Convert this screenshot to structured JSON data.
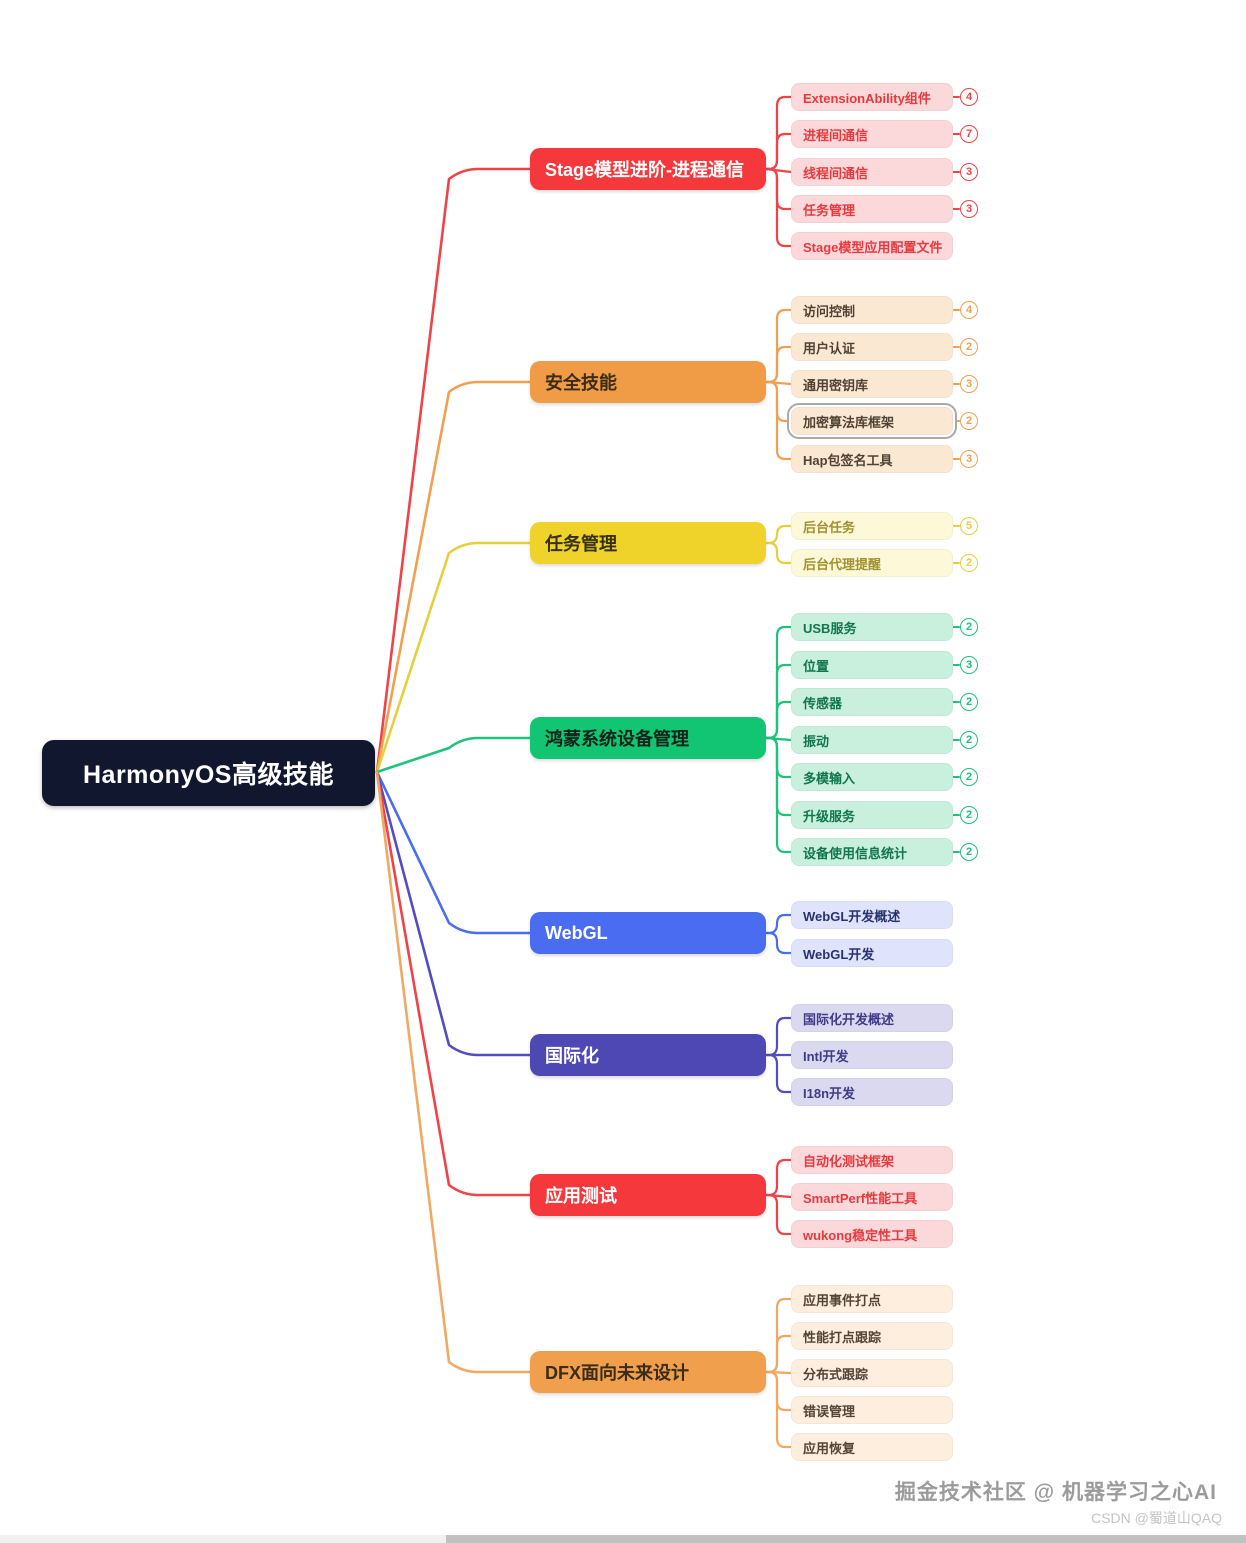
{
  "root": {
    "label": "HarmonyOS高级技能"
  },
  "branches": [
    {
      "label": "Stage模型进阶-进程通信",
      "fill": "#f4383c",
      "label_color": "#ffffff",
      "child_bg": "#fbd8da",
      "child_text": "#e63a3f",
      "line": "#ef4347",
      "children": [
        {
          "label": "ExtensionAbility组件",
          "badge": "4"
        },
        {
          "label": "进程间通信",
          "badge": "7"
        },
        {
          "label": "线程间通信",
          "badge": "3"
        },
        {
          "label": "任务管理",
          "badge": "3"
        },
        {
          "label": "Stage模型应用配置文件"
        }
      ]
    },
    {
      "label": "安全技能",
      "fill": "#f09b45",
      "label_color": "#3a2c18",
      "child_bg": "#fbe8d3",
      "child_text": "#4f4232",
      "line": "#f0a050",
      "children": [
        {
          "label": "访问控制",
          "badge": "4"
        },
        {
          "label": "用户认证",
          "badge": "2"
        },
        {
          "label": "通用密钥库",
          "badge": "3"
        },
        {
          "label": "加密算法库框架",
          "badge": "2",
          "selected": true
        },
        {
          "label": "Hap包签名工具",
          "badge": "3"
        }
      ]
    },
    {
      "label": "任务管理",
      "fill": "#efd32a",
      "label_color": "#373112",
      "child_bg": "#fdf8d8",
      "child_text": "#a0922e",
      "line": "#e6cf3c",
      "children": [
        {
          "label": "后台任务",
          "badge": "5"
        },
        {
          "label": "后台代理提醒",
          "badge": "2"
        }
      ]
    },
    {
      "label": "鸿蒙系统设备管理",
      "fill": "#12c573",
      "label_color": "#14241b",
      "child_bg": "#c9efdd",
      "child_text": "#11764b",
      "line": "#1fc27b",
      "children": [
        {
          "label": "USB服务",
          "badge": "2"
        },
        {
          "label": "位置",
          "badge": "3"
        },
        {
          "label": "传感器",
          "badge": "2"
        },
        {
          "label": "振动",
          "badge": "2"
        },
        {
          "label": "多模输入",
          "badge": "2"
        },
        {
          "label": "升级服务",
          "badge": "2"
        },
        {
          "label": "设备使用信息统计",
          "badge": "2"
        }
      ]
    },
    {
      "label": "WebGL",
      "fill": "#4a6cf0",
      "label_color": "#ffffff",
      "child_bg": "#dfe3fb",
      "child_text": "#26336f",
      "line": "#4a6cf0",
      "children": [
        {
          "label": "WebGL开发概述"
        },
        {
          "label": "WebGL开发"
        }
      ]
    },
    {
      "label": "国际化",
      "fill": "#4e48b4",
      "label_color": "#ffffff",
      "child_bg": "#dbd9f0",
      "child_text": "#403a88",
      "line": "#544cc0",
      "children": [
        {
          "label": "国际化开发概述"
        },
        {
          "label": "Intl开发"
        },
        {
          "label": "I18n开发"
        }
      ]
    },
    {
      "label": "应用测试",
      "fill": "#f5383c",
      "label_color": "#ffffff",
      "child_bg": "#fbd8da",
      "child_text": "#e63a3f",
      "line": "#ef4347",
      "children": [
        {
          "label": "自动化测试框架"
        },
        {
          "label": "SmartPerf性能工具"
        },
        {
          "label": "wukong稳定性工具"
        }
      ]
    },
    {
      "label": "DFX面向未来设计",
      "fill": "#f0a04c",
      "label_color": "#3a2c18",
      "child_bg": "#fdeedd",
      "child_text": "#534536",
      "line": "#f0a862",
      "children": [
        {
          "label": "应用事件打点"
        },
        {
          "label": "性能打点跟踪"
        },
        {
          "label": "分布式跟踪"
        },
        {
          "label": "错误管理"
        },
        {
          "label": "应用恢复"
        }
      ]
    }
  ],
  "watermarks": {
    "primary": "掘金技术社区 @ 机器学习之心AI",
    "secondary": "CSDN @蜀道山QAQ"
  }
}
